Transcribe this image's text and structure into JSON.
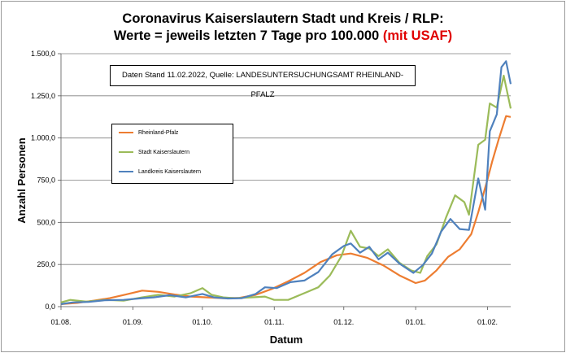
{
  "chart_data": {
    "type": "line",
    "title_line1": "Coronavirus Kaiserslautern Stadt und Kreis / RLP:",
    "title_line2_main": "Werte = jeweils letzten 7 Tage pro 100.000",
    "title_line2_red": "(mit USAF)",
    "annotation": "Daten Stand 11.02.2022, Quelle: LANDESUNTERSUCHUNGSAMT RHEINLAND-PFALZ",
    "xlabel": "Datum",
    "ylabel": "Anzahl Personen",
    "ylim": [
      0,
      1500
    ],
    "yticks": [
      "0,0",
      "250,0",
      "500,0",
      "750,0",
      "1.000,0",
      "1.250,0",
      "1.500,0"
    ],
    "xticks": [
      "01.08.",
      "01.09.",
      "01.10.",
      "01.11.",
      "01.12.",
      "01.01.",
      "01.02."
    ],
    "x_start": "2021-08-01",
    "x_end": "2022-02-11",
    "legend_position": "left-middle",
    "grid": "horizontal",
    "series": [
      {
        "name": "Rheinland-Pfalz",
        "color": "#ed7d31",
        "points": [
          [
            "2021-08-01",
            15
          ],
          [
            "2021-08-08",
            22
          ],
          [
            "2021-08-15",
            35
          ],
          [
            "2021-08-22",
            50
          ],
          [
            "2021-08-29",
            72
          ],
          [
            "2021-09-05",
            95
          ],
          [
            "2021-09-12",
            88
          ],
          [
            "2021-09-19",
            72
          ],
          [
            "2021-09-26",
            60
          ],
          [
            "2021-10-03",
            55
          ],
          [
            "2021-10-10",
            50
          ],
          [
            "2021-10-17",
            52
          ],
          [
            "2021-10-24",
            70
          ],
          [
            "2021-10-31",
            105
          ],
          [
            "2021-11-07",
            150
          ],
          [
            "2021-11-14",
            200
          ],
          [
            "2021-11-21",
            265
          ],
          [
            "2021-11-28",
            305
          ],
          [
            "2021-12-04",
            315
          ],
          [
            "2021-12-11",
            290
          ],
          [
            "2021-12-18",
            245
          ],
          [
            "2021-12-25",
            185
          ],
          [
            "2022-01-01",
            140
          ],
          [
            "2022-01-05",
            155
          ],
          [
            "2022-01-10",
            215
          ],
          [
            "2022-01-15",
            295
          ],
          [
            "2022-01-20",
            340
          ],
          [
            "2022-01-25",
            430
          ],
          [
            "2022-01-28",
            560
          ],
          [
            "2022-02-01",
            755
          ],
          [
            "2022-02-03",
            860
          ],
          [
            "2022-02-06",
            1000
          ],
          [
            "2022-02-09",
            1130
          ],
          [
            "2022-02-11",
            1125
          ]
        ]
      },
      {
        "name": "Stadt Kaiserslautern",
        "color": "#9bbb59",
        "points": [
          [
            "2021-08-01",
            25
          ],
          [
            "2021-08-05",
            40
          ],
          [
            "2021-08-12",
            30
          ],
          [
            "2021-08-20",
            40
          ],
          [
            "2021-08-28",
            35
          ],
          [
            "2021-09-05",
            55
          ],
          [
            "2021-09-12",
            70
          ],
          [
            "2021-09-19",
            60
          ],
          [
            "2021-09-26",
            80
          ],
          [
            "2021-10-01",
            110
          ],
          [
            "2021-10-05",
            70
          ],
          [
            "2021-10-10",
            55
          ],
          [
            "2021-10-15",
            50
          ],
          [
            "2021-10-22",
            55
          ],
          [
            "2021-10-28",
            60
          ],
          [
            "2021-11-01",
            40
          ],
          [
            "2021-11-07",
            40
          ],
          [
            "2021-11-14",
            80
          ],
          [
            "2021-11-20",
            115
          ],
          [
            "2021-11-25",
            185
          ],
          [
            "2021-11-30",
            300
          ],
          [
            "2021-12-04",
            450
          ],
          [
            "2021-12-08",
            355
          ],
          [
            "2021-12-12",
            345
          ],
          [
            "2021-12-16",
            300
          ],
          [
            "2021-12-20",
            340
          ],
          [
            "2021-12-25",
            260
          ],
          [
            "2021-12-30",
            215
          ],
          [
            "2022-01-03",
            200
          ],
          [
            "2022-01-06",
            300
          ],
          [
            "2022-01-10",
            370
          ],
          [
            "2022-01-14",
            525
          ],
          [
            "2022-01-18",
            660
          ],
          [
            "2022-01-22",
            620
          ],
          [
            "2022-01-24",
            545
          ],
          [
            "2022-01-28",
            960
          ],
          [
            "2022-01-31",
            990
          ],
          [
            "2022-02-02",
            1205
          ],
          [
            "2022-02-05",
            1180
          ],
          [
            "2022-02-08",
            1370
          ],
          [
            "2022-02-11",
            1175
          ]
        ]
      },
      {
        "name": "Landkreis Kaiserslautern",
        "color": "#4f81bd",
        "points": [
          [
            "2021-08-01",
            15
          ],
          [
            "2021-08-06",
            25
          ],
          [
            "2021-08-13",
            28
          ],
          [
            "2021-08-20",
            38
          ],
          [
            "2021-08-28",
            40
          ],
          [
            "2021-09-05",
            50
          ],
          [
            "2021-09-10",
            55
          ],
          [
            "2021-09-17",
            68
          ],
          [
            "2021-09-24",
            55
          ],
          [
            "2021-10-01",
            75
          ],
          [
            "2021-10-06",
            55
          ],
          [
            "2021-10-12",
            48
          ],
          [
            "2021-10-18",
            50
          ],
          [
            "2021-10-24",
            75
          ],
          [
            "2021-10-28",
            115
          ],
          [
            "2021-11-02",
            110
          ],
          [
            "2021-11-08",
            145
          ],
          [
            "2021-11-14",
            155
          ],
          [
            "2021-11-20",
            205
          ],
          [
            "2021-11-26",
            310
          ],
          [
            "2021-12-01",
            360
          ],
          [
            "2021-12-04",
            375
          ],
          [
            "2021-12-08",
            320
          ],
          [
            "2021-12-12",
            355
          ],
          [
            "2021-12-16",
            280
          ],
          [
            "2021-12-20",
            320
          ],
          [
            "2021-12-25",
            255
          ],
          [
            "2021-12-31",
            200
          ],
          [
            "2022-01-04",
            245
          ],
          [
            "2022-01-08",
            315
          ],
          [
            "2022-01-12",
            445
          ],
          [
            "2022-01-16",
            520
          ],
          [
            "2022-01-20",
            460
          ],
          [
            "2022-01-24",
            455
          ],
          [
            "2022-01-28",
            760
          ],
          [
            "2022-01-31",
            575
          ],
          [
            "2022-02-02",
            1040
          ],
          [
            "2022-02-05",
            1140
          ],
          [
            "2022-02-07",
            1420
          ],
          [
            "2022-02-09",
            1455
          ],
          [
            "2022-02-11",
            1320
          ]
        ]
      }
    ]
  }
}
